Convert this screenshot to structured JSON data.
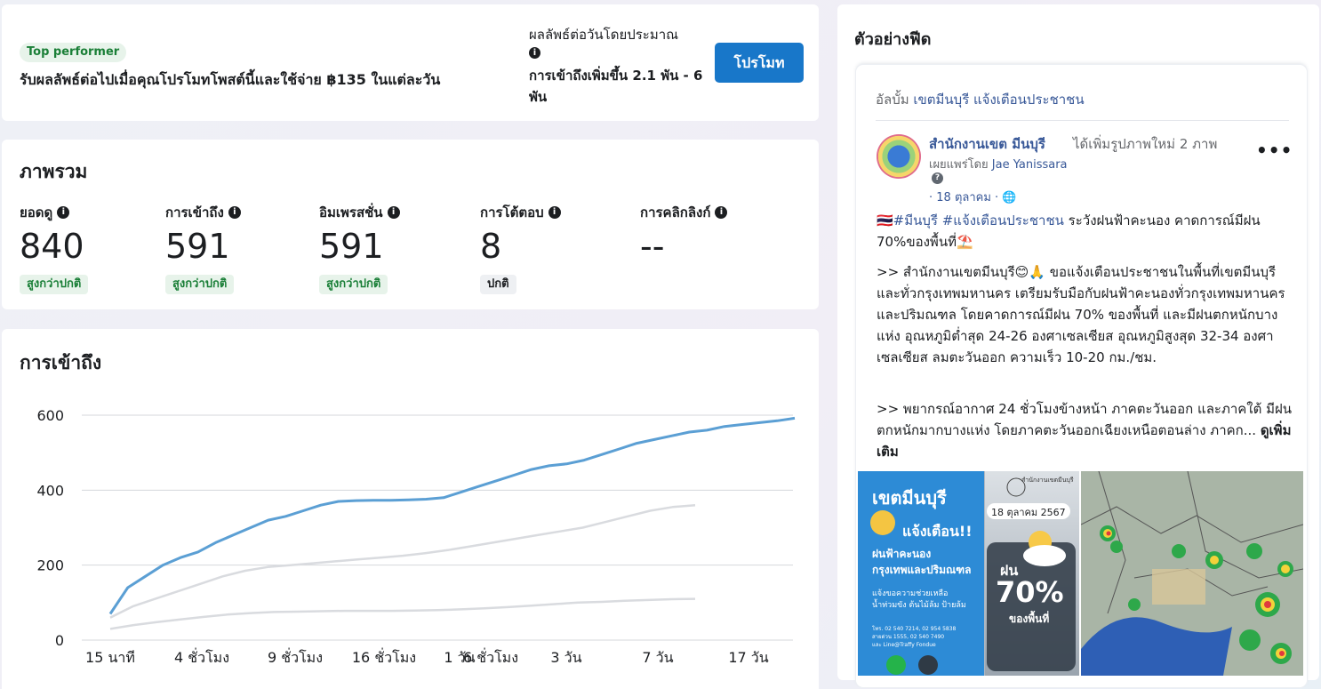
{
  "promo": {
    "badge": "Top performer",
    "text": "รับผลลัพธ์ต่อไปเมื่อคุณโปรโมทโพสต์นี้และใช้จ่าย ฿135 ในแต่ละวัน",
    "est_label": "ผลลัพธ์ต่อวันโดยประมาณ",
    "est_value": "การเข้าถึงเพิ่มขึ้น 2.1 พัน - 6 พัน",
    "button": "โปรโมท"
  },
  "overview": {
    "title": "ภาพรวม",
    "metrics": [
      {
        "label": "ยอดดู",
        "value": "840",
        "badge": "สูงกว่าปกติ"
      },
      {
        "label": "การเข้าถึง",
        "value": "591",
        "badge": "สูงกว่าปกติ"
      },
      {
        "label": "อิมเพรสชั่น",
        "value": "591",
        "badge": "สูงกว่าปกติ"
      },
      {
        "label": "การโต้ตอบ",
        "value": "8",
        "badge": "ปกติ"
      },
      {
        "label": "การคลิกลิงก์",
        "value": "--",
        "badge": ""
      }
    ]
  },
  "reach": {
    "title": "การเข้าถึง"
  },
  "chart_data": {
    "type": "line",
    "title": "การเข้าถึง",
    "xlabel": "",
    "ylabel": "",
    "ylim": [
      0,
      600
    ],
    "yticks": [
      0,
      200,
      400,
      600
    ],
    "xtick_labels": [
      "15 นาที",
      "4 ชั่วโมง",
      "9 ชั่วโมง",
      "16 ชั่วโมง",
      "1 วัน",
      "6 ชั่วโมง",
      "3 วัน",
      "7 วัน",
      "17 วัน"
    ],
    "grid": true,
    "colors": {
      "primary": "#5b9fd4",
      "secondary": "#d9dbdf",
      "tertiary": "#d9dbdf"
    },
    "series": [
      {
        "values": [
          70,
          140,
          170,
          200,
          220,
          235,
          260,
          280,
          300,
          320,
          330,
          345,
          360,
          370,
          372,
          373,
          373,
          374,
          376,
          380,
          395,
          410,
          425,
          440,
          455,
          465,
          470,
          480,
          495,
          510,
          525,
          535,
          545,
          555,
          560,
          570,
          575,
          580,
          585,
          592
        ]
      },
      {
        "values": [
          60,
          90,
          110,
          130,
          150,
          170,
          185,
          195,
          200,
          205,
          210,
          215,
          220,
          225,
          232,
          240,
          250,
          260,
          270,
          280,
          290,
          300,
          315,
          330,
          345,
          355,
          360
        ]
      },
      {
        "values": [
          30,
          40,
          48,
          55,
          62,
          68,
          72,
          75,
          76,
          77,
          78,
          78,
          78,
          79,
          80,
          82,
          85,
          88,
          92,
          96,
          100,
          102,
          105,
          107,
          109,
          110
        ]
      }
    ]
  },
  "feed": {
    "title": "ตัวอย่างฟีด",
    "album_prefix": "อัลบั้ม",
    "album_name": "เขตมีนบุรี แจ้งเตือนประชาชน",
    "page_name": "สำนักงานเขต มีนบุรี",
    "page_action": "ได้เพิ่มรูปภาพใหม่ 2 ภาพ",
    "published_prefix": "เผยแพร่โดย",
    "published_by": "Jae Yanissara",
    "date": "· 18 ตุลาคม · 🌐",
    "hashtags": "🇹🇭#มีนบุรี #แจ้งเตือนประชาชน",
    "line1_rest": " ระวังฝนฟ้าคะนอง คาดการณ์มีฝน 70%ของพื้นที่⛱️",
    "para2": ">> สำนักงานเขตมีนบุรี😊🙏 ขอแจ้งเตือนประชาชนในพื้นที่เขตมีนบุรี และทั่วกรุงเทพมหานคร เตรียมรับมือกับฝนฟ้าคะนองทั่วกรุงเทพมหานคร และปริมณฑล โดยคาดการณ์มีฝน 70% ของพื้นที่ และมีฝนตกหนักบางแห่ง อุณหภูมิต่ำสุด 24-26 องศาเซลเซียส อุณหภูมิสูงสุด 32-34 องศาเซลเซียส ลมตะวันออก ความเร็ว 10-20 กม./ชม.",
    "para3": ">> พยากรณ์อากาศ 24 ชั่วโมงข้างหน้า ภาคตะวันออก และภาคใต้ มีฝนตกหนักมากบางแห่ง โดยภาคตะวันออกเฉียงเหนือตอนล่าง ภาคก... ",
    "see_more": "ดูเพิ่มเติม",
    "image1": {
      "heading": "เขตมีนบุรี",
      "date": "18 ตุลาคม 2567",
      "alert": "แจ้งเตือน!!",
      "sub1": "ฝนฟ้าคะนอง",
      "sub2": "กรุงเทพและปริมณฑล",
      "sub3": "แจ้งขอความช่วยเหลือ",
      "sub4": "น้ำท่วมขัง ต้นไม้ล้ม ป้ายล้ม",
      "small1": "โทร. 02 540 7214, 02 954 5838",
      "small2": "สายด่วน 1555, 02 540 7490",
      "small3": "และ Line@Traffy Fondue",
      "rain_label": "ฝน",
      "percent": "70%",
      "percent_sub": "ของพื้นที่",
      "logo_text": "สำนักงานเขตมีนบุรี"
    }
  }
}
